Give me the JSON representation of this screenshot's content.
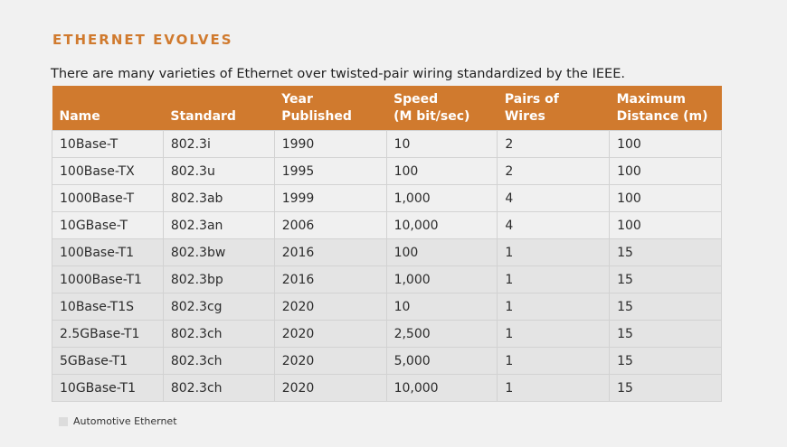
{
  "title": "ETHERNET EVOLVES",
  "intro": "There are many varieties of Ethernet over twisted-pair wiring standardized by the IEEE.",
  "colors": {
    "accent": "#d07a2e",
    "row_standard": "#f0f0f0",
    "row_automotive": "#e4e4e4",
    "background": "#f1f1f1"
  },
  "table": {
    "headers": [
      {
        "line1": "",
        "line2": "Name"
      },
      {
        "line1": "",
        "line2": "Standard"
      },
      {
        "line1": "Year",
        "line2": "Published"
      },
      {
        "line1": "Speed",
        "line2": "(M bit/sec)"
      },
      {
        "line1": "Pairs of",
        "line2": "Wires"
      },
      {
        "line1": "Maximum",
        "line2": "Distance (m)"
      }
    ],
    "rows": [
      {
        "automotive": false,
        "cells": [
          "10Base-T",
          "802.3i",
          "1990",
          "10",
          "2",
          "100"
        ]
      },
      {
        "automotive": false,
        "cells": [
          "100Base-TX",
          "802.3u",
          "1995",
          "100",
          "2",
          "100"
        ]
      },
      {
        "automotive": false,
        "cells": [
          "1000Base-T",
          "802.3ab",
          "1999",
          "1,000",
          "4",
          "100"
        ]
      },
      {
        "automotive": false,
        "cells": [
          "10GBase-T",
          "802.3an",
          "2006",
          "10,000",
          "4",
          "100"
        ]
      },
      {
        "automotive": true,
        "cells": [
          "100Base-T1",
          "802.3bw",
          "2016",
          "100",
          "1",
          "15"
        ]
      },
      {
        "automotive": true,
        "cells": [
          "1000Base-T1",
          "802.3bp",
          "2016",
          "1,000",
          "1",
          "15"
        ]
      },
      {
        "automotive": true,
        "cells": [
          "10Base-T1S",
          "802.3cg",
          "2020",
          "10",
          "1",
          "15"
        ]
      },
      {
        "automotive": true,
        "cells": [
          "2.5GBase-T1",
          "802.3ch",
          "2020",
          "2,500",
          "1",
          "15"
        ]
      },
      {
        "automotive": true,
        "cells": [
          "5GBase-T1",
          "802.3ch",
          "2020",
          "5,000",
          "1",
          "15"
        ]
      },
      {
        "automotive": true,
        "cells": [
          "10GBase-T1",
          "802.3ch",
          "2020",
          "10,000",
          "1",
          "15"
        ]
      }
    ]
  },
  "legend": {
    "label": "Automotive Ethernet",
    "swatch_color": "#dcdcdc"
  }
}
